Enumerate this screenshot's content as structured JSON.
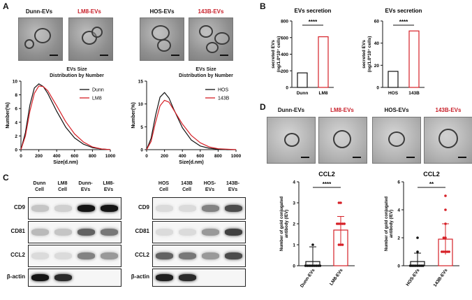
{
  "panels": {
    "a": "A",
    "b": "B",
    "c": "C",
    "d": "D"
  },
  "em_a": {
    "dunn": "Dunn-EVs",
    "lm8": "LM8-EVs",
    "hos": "HOS-EVs",
    "b143": "143B-EVs"
  },
  "em_d": {
    "dunn": "Dunn-EVs",
    "lm8": "LM8-EVs",
    "hos": "HOS-EVs",
    "b143": "143B-EVs"
  },
  "size_left": {
    "title1": "EVs Size",
    "title2": "Distribution by Number",
    "legend": [
      "Dunn",
      "LM8"
    ]
  },
  "size_right": {
    "title1": "EVs Size",
    "title2": "Distribution by Number",
    "legend": [
      "HOS",
      "143B"
    ]
  },
  "secretion": {
    "title": "EVs secretion",
    "sig": "****"
  },
  "blot_left": {
    "lanes": [
      [
        "Dunn",
        "Cell"
      ],
      [
        "LM8",
        "Cell"
      ],
      [
        "Dunn-",
        "EVs"
      ],
      [
        "LM8-",
        "EVs"
      ]
    ],
    "rows": [
      "CD9",
      "CD81",
      "CCL2",
      "β-actin"
    ]
  },
  "blot_right": {
    "lanes": [
      [
        "HOS",
        "Cell"
      ],
      [
        "143B",
        "Cell"
      ],
      [
        "HOS-",
        "EVs"
      ],
      [
        "143B-",
        "EVs"
      ]
    ],
    "rows": [
      "CD9",
      "CD81",
      "CCL2",
      "β-actin"
    ]
  },
  "ccl2": {
    "title": "CCL2"
  },
  "colors": {
    "black": "#111111",
    "red": "#d62027"
  },
  "chart_data": [
    {
      "type": "line",
      "title": "EVs Size Distribution by Number",
      "xlabel": "Size(d.nm)",
      "ylabel": "Number(%)",
      "xlim": [
        0,
        1000
      ],
      "ylim": [
        0,
        10
      ],
      "xticks": [
        0,
        200,
        400,
        600,
        800,
        1000
      ],
      "yticks": [
        0,
        2,
        4,
        6,
        8,
        10
      ],
      "x": [
        0,
        50,
        100,
        150,
        200,
        250,
        300,
        400,
        500,
        600,
        700,
        800,
        900,
        1000
      ],
      "series": [
        {
          "name": "Dunn",
          "color": "#111111",
          "values": [
            0,
            2.5,
            6.5,
            9.0,
            9.6,
            9.2,
            8.2,
            5.6,
            3.3,
            1.7,
            0.8,
            0.3,
            0.1,
            0
          ]
        },
        {
          "name": "LM8",
          "color": "#d62027",
          "values": [
            0,
            2.0,
            5.6,
            8.2,
            9.3,
            9.2,
            8.6,
            6.4,
            4.1,
            2.3,
            1.1,
            0.4,
            0.1,
            0
          ]
        }
      ]
    },
    {
      "type": "line",
      "title": "EVs Size Distribution by Number",
      "xlabel": "Size(d.nm)",
      "ylabel": "Number(%)",
      "xlim": [
        0,
        1000
      ],
      "ylim": [
        0,
        15
      ],
      "xticks": [
        0,
        200,
        400,
        600,
        800,
        1000
      ],
      "yticks": [
        0,
        5,
        10,
        15
      ],
      "x": [
        0,
        50,
        100,
        150,
        200,
        250,
        300,
        400,
        500,
        600,
        700,
        800,
        900,
        1000
      ],
      "series": [
        {
          "name": "HOS",
          "color": "#111111",
          "values": [
            0,
            2.5,
            7.5,
            11.5,
            12.5,
            11.3,
            9.0,
            4.8,
            2.1,
            0.8,
            0.3,
            0.1,
            0,
            0
          ]
        },
        {
          "name": "143B",
          "color": "#d62027",
          "values": [
            0,
            1.8,
            6.0,
            9.6,
            10.8,
            10.4,
            8.8,
            5.6,
            3.1,
            1.5,
            0.6,
            0.2,
            0.1,
            0
          ]
        }
      ]
    },
    {
      "type": "bar",
      "title": "EVs secretion",
      "ylabel": "secreted EVs (ng/1.0*10⁷ cells)",
      "categories": [
        "Dunn",
        "LM8"
      ],
      "values": [
        175,
        610
      ],
      "ylim": [
        0,
        800
      ],
      "yticks": [
        0,
        200,
        400,
        600,
        800
      ],
      "significance": "****"
    },
    {
      "type": "bar",
      "title": "EVs secretion",
      "ylabel": "secreted EVs (ng/1.0*10⁷ cells)",
      "categories": [
        "HOS",
        "143B"
      ],
      "values": [
        14.5,
        51
      ],
      "ylim": [
        0,
        60
      ],
      "yticks": [
        0,
        20,
        40,
        60
      ],
      "significance": "****"
    },
    {
      "type": "bar",
      "title": "CCL2",
      "ylabel": "Number of gold conjugated antibody (/EV)",
      "categories": [
        "Dunn-EVs",
        "LM8-EVs"
      ],
      "values": [
        0.2,
        1.7
      ],
      "errors": [
        0.7,
        0.65
      ],
      "ylim": [
        0,
        4
      ],
      "yticks": [
        0,
        1,
        2,
        3,
        4
      ],
      "significance": "****",
      "points": [
        [
          0,
          0,
          0,
          0,
          0,
          0,
          0,
          0,
          0,
          1
        ],
        [
          1,
          1,
          1,
          2,
          2,
          2,
          2,
          2,
          3,
          3
        ]
      ]
    },
    {
      "type": "bar",
      "title": "CCL2",
      "ylabel": "Number of gold conjugated antibody (/EV)",
      "categories": [
        "HOS-EVs",
        "143B-EVs"
      ],
      "values": [
        0.3,
        1.9
      ],
      "errors": [
        0.6,
        1.1
      ],
      "ylim": [
        0,
        6
      ],
      "yticks": [
        0,
        2,
        4,
        6
      ],
      "significance": "**",
      "points": [
        [
          0,
          0,
          0,
          0,
          0,
          0,
          0,
          0,
          1,
          2
        ],
        [
          1,
          1,
          1,
          1,
          1,
          2,
          2,
          3,
          4,
          5
        ]
      ]
    }
  ]
}
